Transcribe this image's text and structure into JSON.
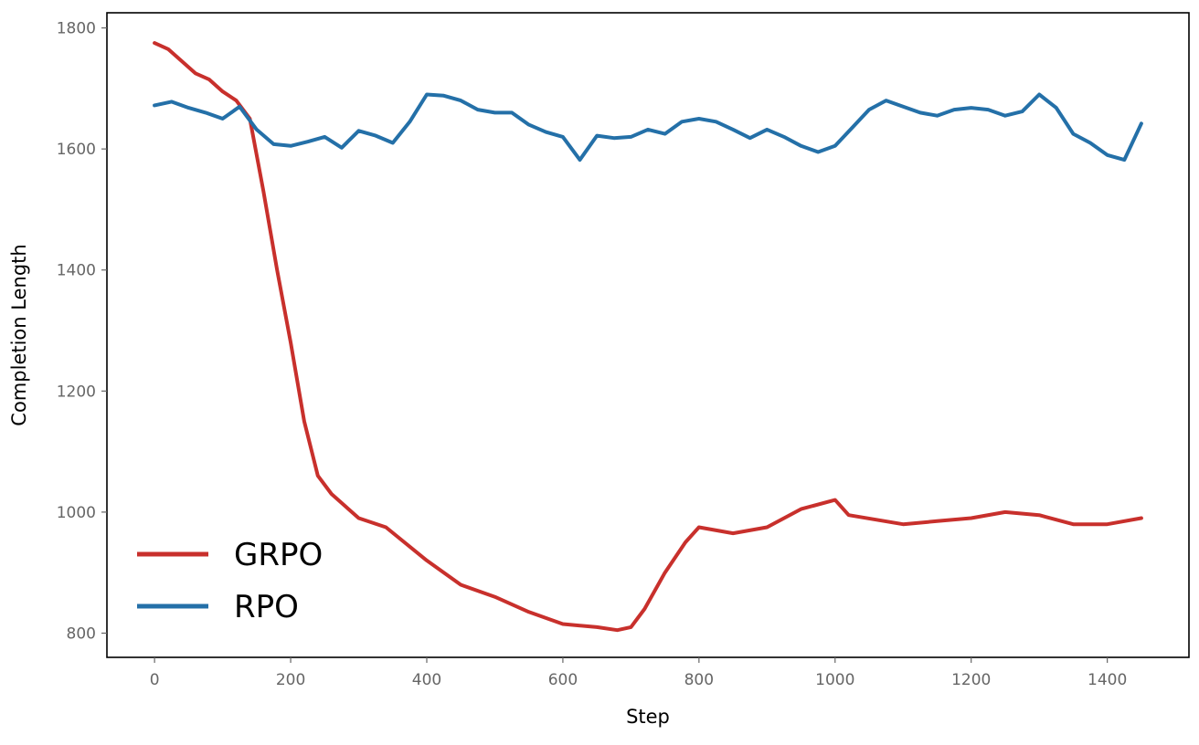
{
  "chart_data": {
    "type": "line",
    "xlabel": "Step",
    "ylabel": "Completion Length",
    "xlim": [
      -70,
      1520
    ],
    "ylim": [
      760,
      1825
    ],
    "xticks": [
      0,
      200,
      400,
      600,
      800,
      1000,
      1200,
      1400
    ],
    "yticks": [
      800,
      1000,
      1200,
      1400,
      1600,
      1800
    ],
    "grid": false,
    "legend": {
      "placement": "lower-left"
    },
    "series": [
      {
        "name": "GRPO",
        "color": "#c8302c",
        "x": [
          0,
          20,
          40,
          60,
          80,
          100,
          120,
          140,
          160,
          180,
          200,
          220,
          240,
          260,
          280,
          300,
          340,
          400,
          450,
          500,
          550,
          600,
          650,
          680,
          700,
          720,
          750,
          780,
          800,
          850,
          900,
          950,
          1000,
          1020,
          1100,
          1150,
          1200,
          1250,
          1300,
          1350,
          1400,
          1450
        ],
        "y": [
          1775,
          1765,
          1745,
          1725,
          1715,
          1695,
          1680,
          1650,
          1530,
          1400,
          1280,
          1150,
          1060,
          1030,
          1010,
          990,
          975,
          920,
          880,
          860,
          835,
          815,
          810,
          805,
          810,
          840,
          900,
          950,
          975,
          965,
          975,
          1005,
          1020,
          995,
          980,
          985,
          990,
          1000,
          995,
          980,
          980,
          990
        ]
      },
      {
        "name": "RPO",
        "color": "#2470a8",
        "x": [
          0,
          25,
          50,
          75,
          100,
          125,
          150,
          175,
          200,
          225,
          250,
          275,
          300,
          325,
          350,
          375,
          400,
          425,
          450,
          475,
          500,
          525,
          550,
          575,
          600,
          625,
          650,
          675,
          700,
          725,
          750,
          775,
          800,
          825,
          850,
          875,
          900,
          925,
          950,
          975,
          1000,
          1025,
          1050,
          1075,
          1100,
          1125,
          1150,
          1175,
          1200,
          1225,
          1250,
          1275,
          1300,
          1325,
          1350,
          1375,
          1400,
          1425,
          1450
        ],
        "y": [
          1672,
          1678,
          1668,
          1660,
          1650,
          1670,
          1632,
          1608,
          1605,
          1612,
          1620,
          1602,
          1630,
          1622,
          1610,
          1645,
          1690,
          1688,
          1680,
          1665,
          1660,
          1660,
          1640,
          1628,
          1620,
          1582,
          1622,
          1618,
          1620,
          1632,
          1625,
          1645,
          1650,
          1645,
          1632,
          1618,
          1632,
          1620,
          1605,
          1595,
          1605,
          1635,
          1665,
          1680,
          1670,
          1660,
          1655,
          1665,
          1668,
          1665,
          1655,
          1662,
          1690,
          1668,
          1625,
          1610,
          1590,
          1582,
          1642
        ]
      }
    ]
  }
}
